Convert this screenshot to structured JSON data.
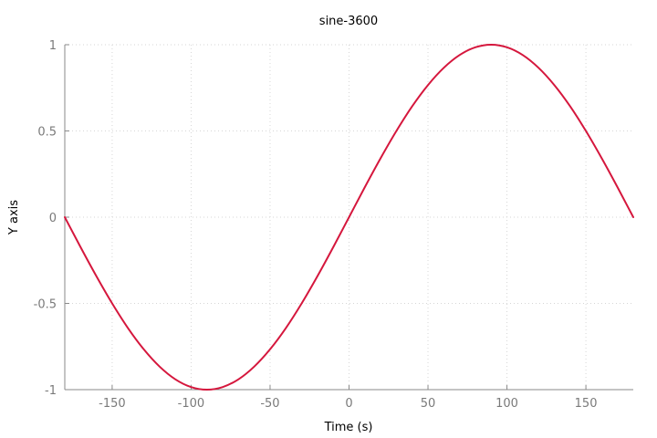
{
  "chart_data": {
    "type": "line",
    "title": "sine-3600",
    "xlabel": "Time (s)",
    "ylabel": "Y axis",
    "xlim": [
      -180,
      180
    ],
    "ylim": [
      -1,
      1
    ],
    "xticks": [
      -150,
      -100,
      -50,
      0,
      50,
      100,
      150
    ],
    "yticks": [
      -1,
      -0.5,
      0,
      0.5,
      1
    ],
    "xtick_labels": [
      "-150",
      "-100",
      "-50",
      "0",
      "50",
      "100",
      "150"
    ],
    "ytick_labels": [
      "-1",
      "-0.5",
      "0",
      "0.5",
      "1"
    ],
    "grid": true,
    "series": [
      {
        "color": "#d5173d",
        "x": [
          -180,
          -170,
          -160,
          -150,
          -140,
          -130,
          -120,
          -110,
          -100,
          -90,
          -80,
          -70,
          -60,
          -50,
          -40,
          -30,
          -20,
          -10,
          0,
          10,
          20,
          30,
          40,
          50,
          60,
          70,
          80,
          90,
          100,
          110,
          120,
          130,
          140,
          150,
          160,
          170,
          180
        ],
        "y": [
          0,
          -0.174,
          -0.342,
          -0.5,
          -0.643,
          -0.766,
          -0.866,
          -0.94,
          -0.985,
          -1,
          -0.985,
          -0.94,
          -0.866,
          -0.766,
          -0.643,
          -0.5,
          -0.342,
          -0.174,
          0,
          0.174,
          0.342,
          0.5,
          0.643,
          0.766,
          0.866,
          0.94,
          0.985,
          1,
          0.985,
          0.94,
          0.866,
          0.766,
          0.643,
          0.5,
          0.342,
          0.174,
          0
        ]
      }
    ]
  }
}
